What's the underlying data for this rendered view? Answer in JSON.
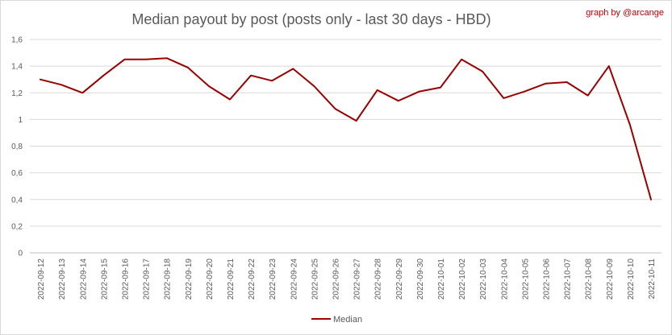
{
  "chart_data": {
    "type": "line",
    "title": "Median payout by post (posts only - last 30 days - HBD)",
    "credit": "graph by @arcange",
    "xlabel": "",
    "ylabel": "",
    "ylim": [
      0,
      1.6
    ],
    "y_ticks": [
      "0",
      "0,2",
      "0,4",
      "0,6",
      "0,8",
      "1",
      "1,2",
      "1,4",
      "1,6"
    ],
    "y_tick_values": [
      0,
      0.2,
      0.4,
      0.6,
      0.8,
      1.0,
      1.2,
      1.4,
      1.6
    ],
    "grid": true,
    "legend_position": "bottom",
    "categories": [
      "2022-09-12",
      "2022-09-13",
      "2022-09-14",
      "2022-09-15",
      "2022-09-16",
      "2022-09-17",
      "2022-09-18",
      "2022-09-19",
      "2022-09-20",
      "2022-09-21",
      "2022-09-22",
      "2022-09-23",
      "2022-09-24",
      "2022-09-25",
      "2022-09-26",
      "2022-09-27",
      "2022-09-28",
      "2022-09-29",
      "2022-09-30",
      "2022-10-01",
      "2022-10-02",
      "2022-10-03",
      "2022-10-04",
      "2022-10-05",
      "2022-10-06",
      "2022-10-07",
      "2022-10-08",
      "2022-10-09",
      "2022-10-10",
      "2022-10-11"
    ],
    "series": [
      {
        "name": "Median",
        "color": "#990000",
        "values": [
          1.3,
          1.26,
          1.2,
          1.33,
          1.45,
          1.45,
          1.46,
          1.39,
          1.25,
          1.15,
          1.33,
          1.29,
          1.38,
          1.25,
          1.08,
          0.99,
          1.22,
          1.14,
          1.21,
          1.24,
          1.45,
          1.36,
          1.16,
          1.21,
          1.27,
          1.28,
          1.18,
          1.4,
          0.96,
          0.4
        ]
      }
    ]
  }
}
